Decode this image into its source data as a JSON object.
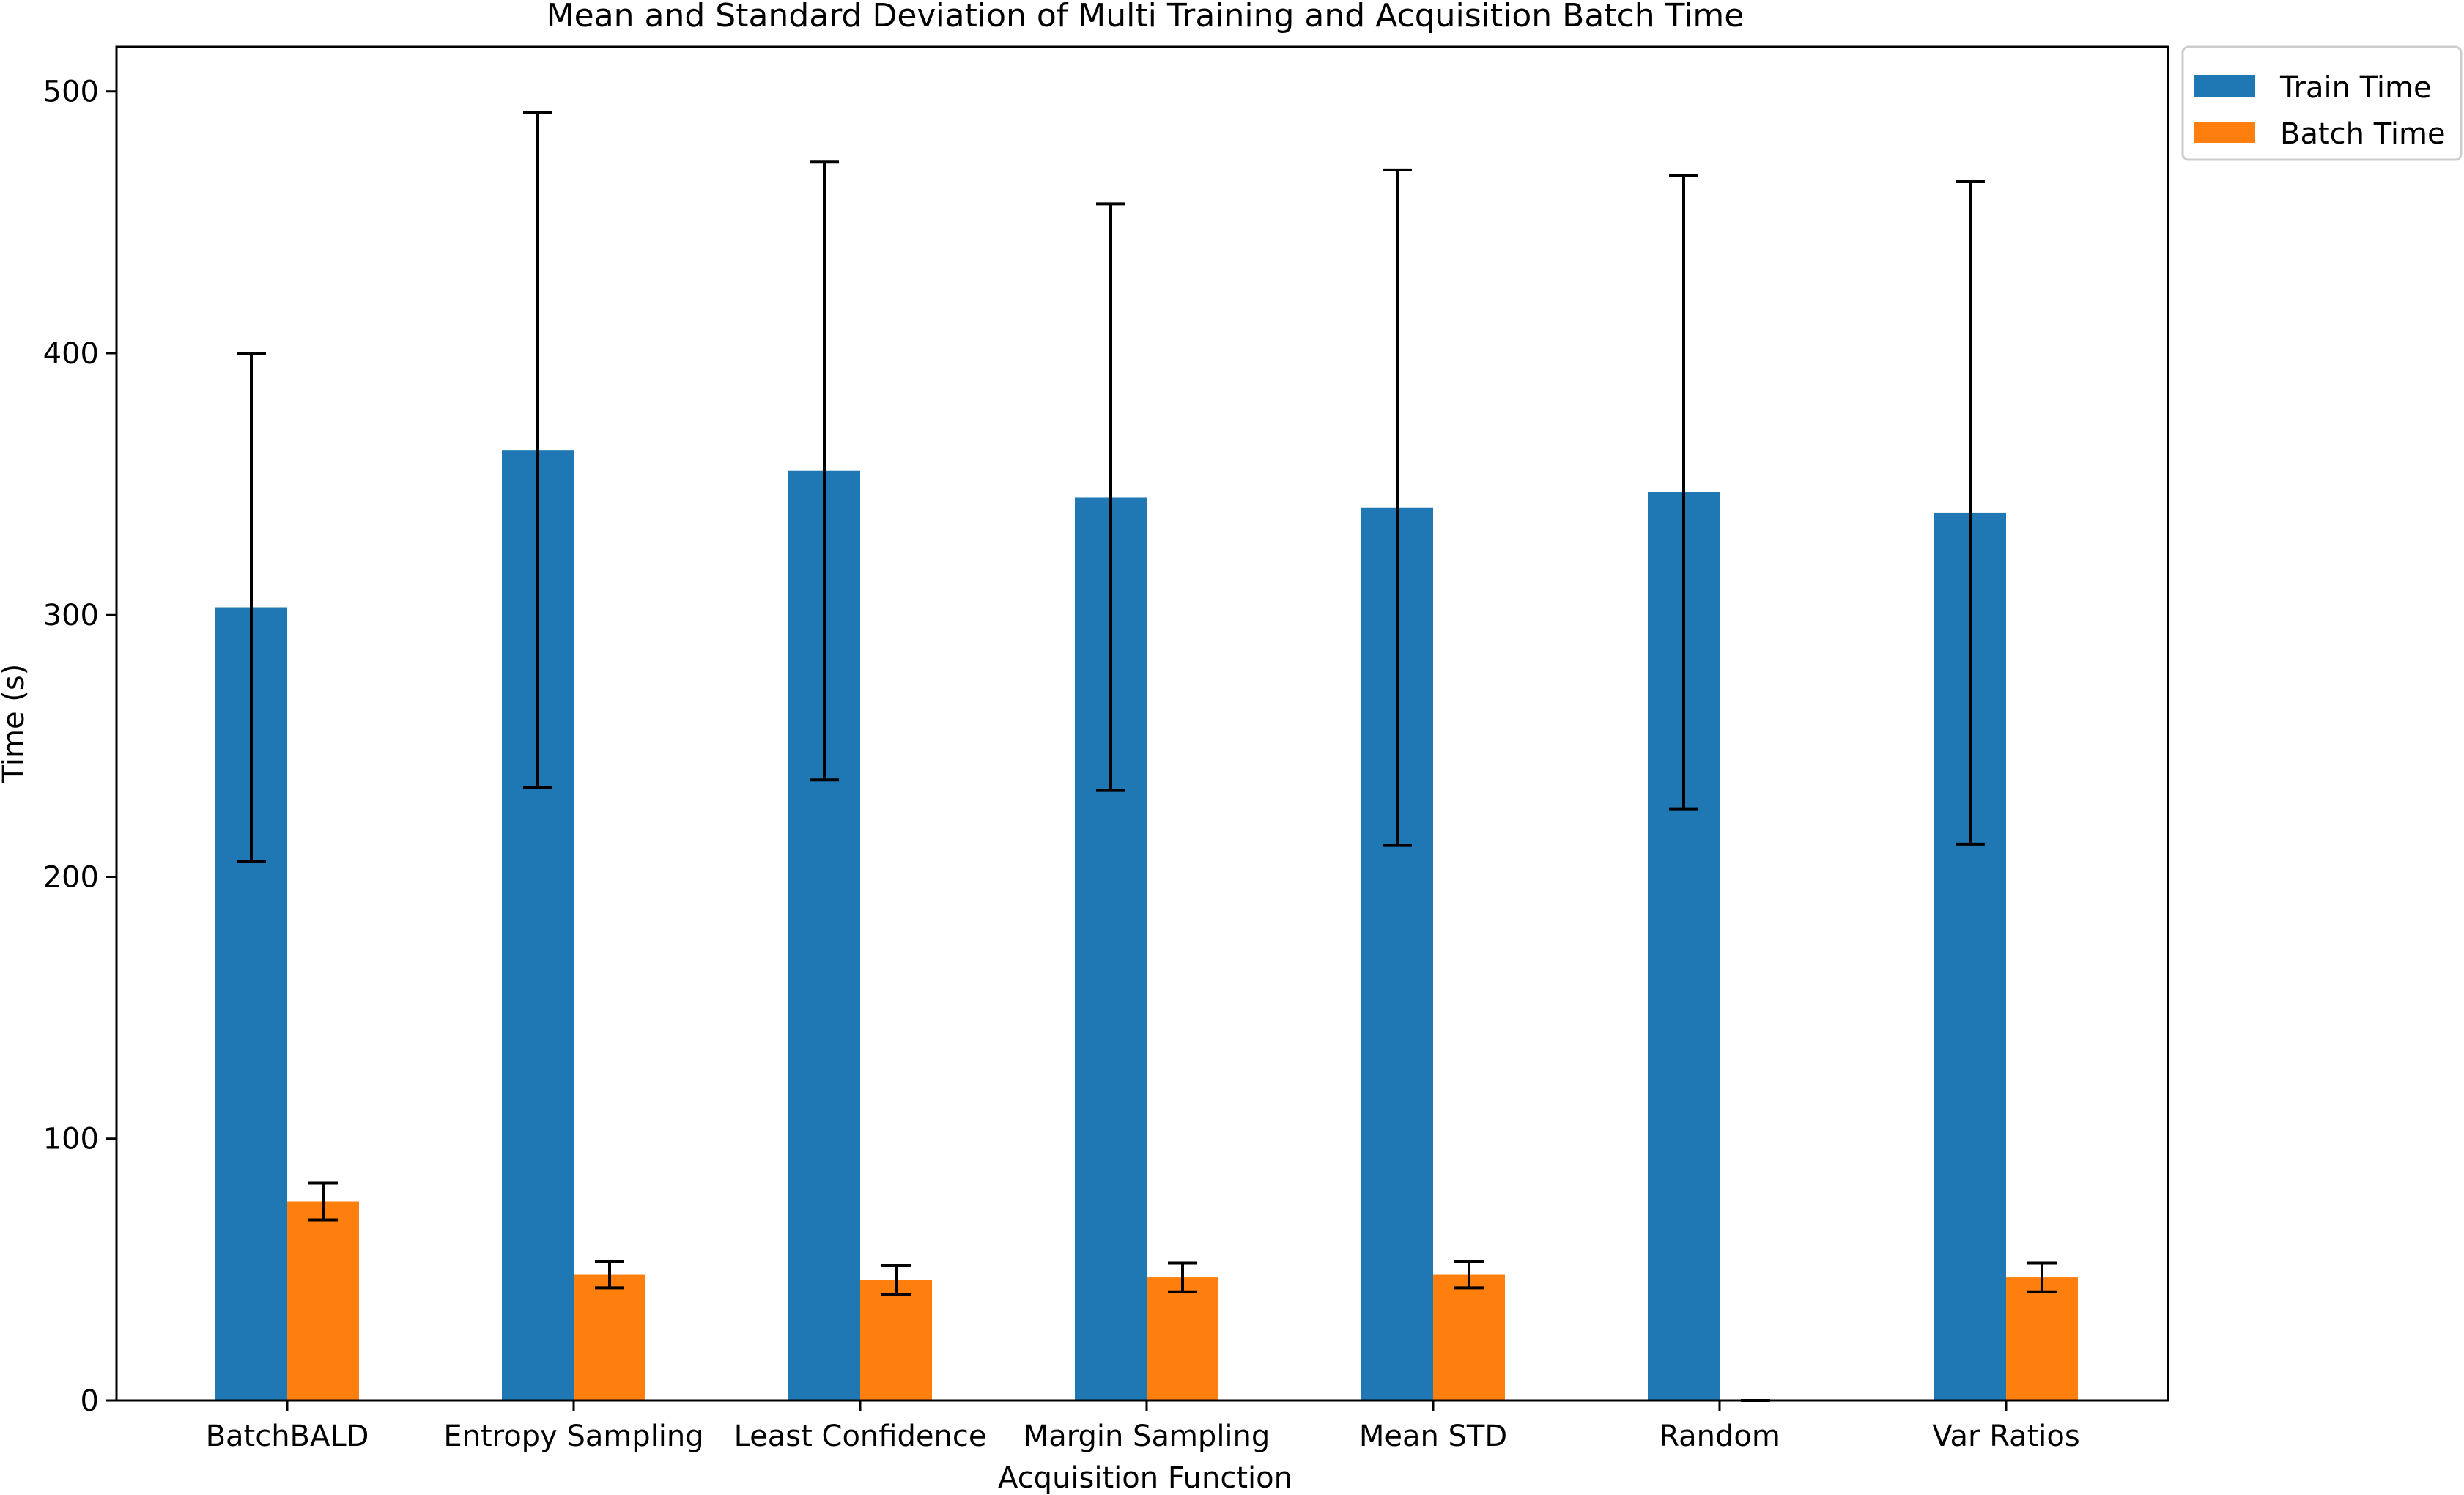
{
  "chart_data": {
    "type": "bar",
    "title": "Mean and Standard Deviation of Multi Training and Acquisition Batch Time",
    "xlabel": "Acquisition Function",
    "ylabel": "Time (s)",
    "ylim": [
      0,
      517
    ],
    "yticks": [
      0,
      100,
      200,
      300,
      400,
      500
    ],
    "categories": [
      "BatchBALD",
      "Entropy Sampling",
      "Least Confidence",
      "Margin Sampling",
      "Mean STD",
      "Random",
      "Var Ratios"
    ],
    "series": [
      {
        "name": "Train Time",
        "color": "#1f77b4",
        "values": [
          303,
          363,
          355,
          345,
          341,
          347,
          339
        ],
        "errors": [
          97,
          129,
          118,
          112,
          129,
          121,
          126.5
        ]
      },
      {
        "name": "Batch Time",
        "color": "#ff7f0e",
        "values": [
          76,
          48,
          46,
          47,
          48,
          0,
          47
        ],
        "errors": [
          7,
          5,
          5.5,
          5.5,
          5,
          0,
          5.5
        ]
      }
    ],
    "legend_position": "upper-right-outside",
    "grid": false
  }
}
